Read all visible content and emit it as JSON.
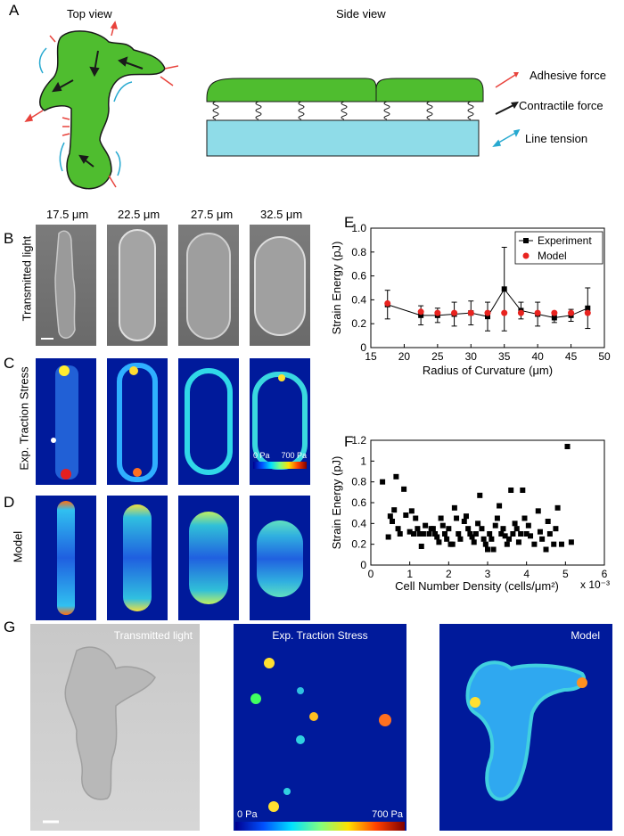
{
  "panel_letters": {
    "A": "A",
    "B": "B",
    "C": "C",
    "D": "D",
    "E": "E",
    "F": "F",
    "G": "G"
  },
  "panel_a": {
    "top_view": "Top view",
    "side_view": "Side view",
    "legend": {
      "adhesive": "Adhesive force",
      "contractile": "Contractile force",
      "line_tension": "Line tension"
    },
    "colors": {
      "cell": "#4fbd2f",
      "adhesive": "#e8433c",
      "contractile": "#1a1a1a",
      "line": "#27a9d0",
      "substrate": "#8fdce8"
    }
  },
  "columns": [
    "17.5 μm",
    "22.5 μm",
    "27.5 μm",
    "32.5 μm"
  ],
  "row_labels": {
    "b": "Transmitted light",
    "c": "Exp. Traction Stress",
    "d": "Model"
  },
  "colorbar_c": {
    "min": "0 Pa",
    "max": "700 Pa"
  },
  "panel_g": {
    "transmitted": "Transmitted light",
    "traction": "Exp. Traction Stress",
    "model": "Model",
    "colorbar_min": "0 Pa",
    "colorbar_max": "700 Pa"
  },
  "chart_data": [
    {
      "type": "line",
      "panel": "E",
      "xlabel": "Radius of Curvature (μm)",
      "ylabel": "Strain Energy (pJ)",
      "xlim": [
        15,
        50
      ],
      "ylim": [
        0,
        1.0
      ],
      "xticks": [
        15,
        20,
        25,
        30,
        35,
        40,
        45,
        50
      ],
      "yticks": [
        0,
        0.2,
        0.4,
        0.6,
        0.8,
        1.0
      ],
      "ytick_labels": [
        "0",
        "0.2",
        "0.4",
        "0.6",
        "0.8",
        "1.0"
      ],
      "legend_position": "top-right",
      "series": [
        {
          "name": "Experiment",
          "color": "#000000",
          "marker": "square",
          "x": [
            17.5,
            22.5,
            25,
            27.5,
            30,
            32.5,
            35,
            37.5,
            40,
            42.5,
            45,
            47.5
          ],
          "y": [
            0.36,
            0.27,
            0.27,
            0.28,
            0.29,
            0.26,
            0.49,
            0.31,
            0.28,
            0.25,
            0.27,
            0.33
          ],
          "err": [
            0.12,
            0.08,
            0.06,
            0.1,
            0.1,
            0.12,
            0.35,
            0.07,
            0.1,
            0.04,
            0.05,
            0.17
          ]
        },
        {
          "name": "Model",
          "color": "#e8231f",
          "marker": "circle",
          "x": [
            17.5,
            22.5,
            25,
            27.5,
            30,
            32.5,
            35,
            37.5,
            40,
            42.5,
            45,
            47.5
          ],
          "y": [
            0.37,
            0.3,
            0.29,
            0.29,
            0.29,
            0.29,
            0.29,
            0.29,
            0.29,
            0.29,
            0.29,
            0.29
          ]
        }
      ]
    },
    {
      "type": "scatter",
      "panel": "F",
      "xlabel": "Cell Number Density (cells/μm²)",
      "xscale_label": "x 10⁻³",
      "ylabel": "Strain Energy (pJ)",
      "xlim": [
        0,
        6
      ],
      "ylim": [
        0,
        1.2
      ],
      "xticks": [
        0,
        1,
        2,
        3,
        4,
        5,
        6
      ],
      "yticks": [
        0,
        0.2,
        0.4,
        0.6,
        0.8,
        1.0,
        1.2
      ],
      "ytick_labels": [
        "0",
        "0.2",
        "0.4",
        "0.6",
        "0.8",
        "1",
        "1.2"
      ],
      "series": [
        {
          "color": "#000000",
          "marker": "square",
          "points": [
            [
              0.3,
              0.8
            ],
            [
              0.45,
              0.27
            ],
            [
              0.5,
              0.47
            ],
            [
              0.55,
              0.42
            ],
            [
              0.6,
              0.53
            ],
            [
              0.65,
              0.85
            ],
            [
              0.7,
              0.35
            ],
            [
              0.75,
              0.3
            ],
            [
              0.85,
              0.73
            ],
            [
              0.9,
              0.48
            ],
            [
              1.0,
              0.32
            ],
            [
              1.05,
              0.52
            ],
            [
              1.1,
              0.3
            ],
            [
              1.15,
              0.45
            ],
            [
              1.2,
              0.35
            ],
            [
              1.25,
              0.3
            ],
            [
              1.3,
              0.18
            ],
            [
              1.35,
              0.3
            ],
            [
              1.4,
              0.38
            ],
            [
              1.5,
              0.3
            ],
            [
              1.55,
              0.35
            ],
            [
              1.6,
              0.35
            ],
            [
              1.65,
              0.3
            ],
            [
              1.7,
              0.27
            ],
            [
              1.75,
              0.22
            ],
            [
              1.8,
              0.45
            ],
            [
              1.85,
              0.38
            ],
            [
              1.9,
              0.3
            ],
            [
              1.95,
              0.25
            ],
            [
              2.0,
              0.35
            ],
            [
              2.05,
              0.2
            ],
            [
              2.1,
              0.2
            ],
            [
              2.15,
              0.55
            ],
            [
              2.2,
              0.45
            ],
            [
              2.25,
              0.3
            ],
            [
              2.3,
              0.25
            ],
            [
              2.4,
              0.42
            ],
            [
              2.45,
              0.47
            ],
            [
              2.5,
              0.35
            ],
            [
              2.55,
              0.3
            ],
            [
              2.6,
              0.27
            ],
            [
              2.65,
              0.22
            ],
            [
              2.7,
              0.3
            ],
            [
              2.75,
              0.4
            ],
            [
              2.8,
              0.67
            ],
            [
              2.85,
              0.35
            ],
            [
              2.9,
              0.25
            ],
            [
              2.95,
              0.2
            ],
            [
              3.0,
              0.15
            ],
            [
              3.05,
              0.3
            ],
            [
              3.1,
              0.25
            ],
            [
              3.15,
              0.15
            ],
            [
              3.2,
              0.38
            ],
            [
              3.25,
              0.45
            ],
            [
              3.3,
              0.57
            ],
            [
              3.35,
              0.3
            ],
            [
              3.4,
              0.35
            ],
            [
              3.45,
              0.28
            ],
            [
              3.5,
              0.2
            ],
            [
              3.55,
              0.25
            ],
            [
              3.6,
              0.72
            ],
            [
              3.65,
              0.3
            ],
            [
              3.7,
              0.4
            ],
            [
              3.75,
              0.35
            ],
            [
              3.8,
              0.22
            ],
            [
              3.85,
              0.3
            ],
            [
              3.9,
              0.72
            ],
            [
              3.95,
              0.45
            ],
            [
              4.0,
              0.3
            ],
            [
              4.05,
              0.38
            ],
            [
              4.1,
              0.28
            ],
            [
              4.2,
              0.2
            ],
            [
              4.3,
              0.52
            ],
            [
              4.35,
              0.32
            ],
            [
              4.4,
              0.25
            ],
            [
              4.5,
              0.15
            ],
            [
              4.55,
              0.42
            ],
            [
              4.6,
              0.3
            ],
            [
              4.7,
              0.2
            ],
            [
              4.75,
              0.35
            ],
            [
              4.8,
              0.55
            ],
            [
              4.9,
              0.2
            ],
            [
              5.05,
              1.14
            ],
            [
              5.15,
              0.22
            ]
          ]
        }
      ]
    }
  ]
}
